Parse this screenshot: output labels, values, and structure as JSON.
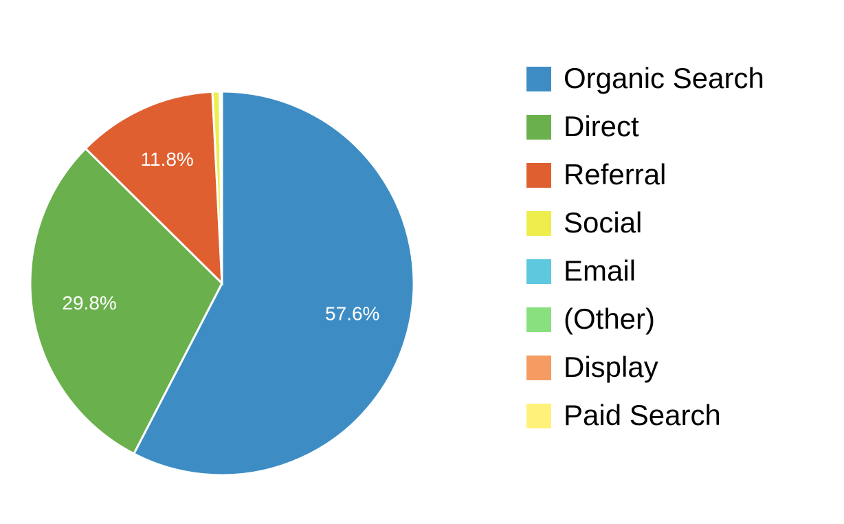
{
  "chart_data": {
    "type": "pie",
    "categories": [
      "Organic Search",
      "Direct",
      "Referral",
      "Social",
      "Email",
      "(Other)",
      "Display",
      "Paid Search"
    ],
    "values": [
      57.6,
      29.8,
      11.8,
      0.6,
      0.1,
      0.05,
      0.03,
      0.02
    ],
    "value_labels": [
      "57.6%",
      "29.8%",
      "11.8%",
      null,
      null,
      null,
      null,
      null
    ],
    "colors": [
      "#3d8dc4",
      "#6ab04c",
      "#df5f30",
      "#eded4e",
      "#5ec8de",
      "#88e07e",
      "#f59c62",
      "#fff17a"
    ],
    "legend": "right"
  }
}
